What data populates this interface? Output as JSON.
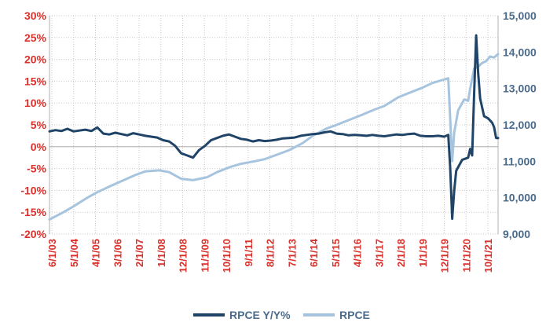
{
  "chart_data": {
    "type": "line",
    "title": "",
    "xlabel": "",
    "ylabel_left": "",
    "ylabel_right": "",
    "x_tick_labels": [
      "6/1/03",
      "5/1/04",
      "4/1/05",
      "3/1/06",
      "2/1/07",
      "1/1/08",
      "12/1/08",
      "11/1/09",
      "10/1/10",
      "9/1/11",
      "8/1/12",
      "7/1/13",
      "6/1/14",
      "5/1/15",
      "4/1/16",
      "3/1/17",
      "2/1/18",
      "1/1/19",
      "12/1/19",
      "11/1/20",
      "10/1/21"
    ],
    "x_start": "2003-06",
    "x_end": "2022-03",
    "y_left": {
      "min": -20,
      "max": 30,
      "step": 5,
      "format": "percent"
    },
    "y_right": {
      "min": 9000,
      "max": 15000,
      "step": 1000,
      "format": "thousands"
    },
    "grid": true,
    "legend_position": "bottom",
    "colors": {
      "rpce_yoy": "#1f4467",
      "rpce": "#a7c4df",
      "axis_left": "#d9312b",
      "axis_right": "#4a6b8c",
      "grid": "#c8c8c8"
    },
    "series": [
      {
        "name": "RPCE Y/Y%",
        "axis": "left",
        "color": "#1f4467",
        "points": [
          [
            "2003-06",
            3.5
          ],
          [
            "2003-09",
            3.8
          ],
          [
            "2003-12",
            3.6
          ],
          [
            "2004-03",
            4.1
          ],
          [
            "2004-06",
            3.5
          ],
          [
            "2004-09",
            3.7
          ],
          [
            "2004-12",
            3.9
          ],
          [
            "2005-03",
            3.6
          ],
          [
            "2005-06",
            4.4
          ],
          [
            "2005-09",
            3.0
          ],
          [
            "2005-12",
            2.8
          ],
          [
            "2006-03",
            3.2
          ],
          [
            "2006-06",
            2.9
          ],
          [
            "2006-09",
            2.6
          ],
          [
            "2006-12",
            3.1
          ],
          [
            "2007-03",
            2.8
          ],
          [
            "2007-06",
            2.5
          ],
          [
            "2007-09",
            2.3
          ],
          [
            "2007-12",
            2.1
          ],
          [
            "2008-03",
            1.5
          ],
          [
            "2008-06",
            1.2
          ],
          [
            "2008-09",
            0.2
          ],
          [
            "2008-12",
            -1.5
          ],
          [
            "2009-03",
            -2.0
          ],
          [
            "2009-06",
            -2.5
          ],
          [
            "2009-09",
            -0.8
          ],
          [
            "2009-12",
            0.2
          ],
          [
            "2010-03",
            1.5
          ],
          [
            "2010-06",
            2.0
          ],
          [
            "2010-09",
            2.5
          ],
          [
            "2010-12",
            2.8
          ],
          [
            "2011-03",
            2.3
          ],
          [
            "2011-06",
            1.8
          ],
          [
            "2011-09",
            1.6
          ],
          [
            "2011-12",
            1.2
          ],
          [
            "2012-03",
            1.5
          ],
          [
            "2012-06",
            1.3
          ],
          [
            "2012-09",
            1.4
          ],
          [
            "2012-12",
            1.6
          ],
          [
            "2013-03",
            1.9
          ],
          [
            "2013-06",
            2.0
          ],
          [
            "2013-09",
            2.1
          ],
          [
            "2013-12",
            2.5
          ],
          [
            "2014-03",
            2.7
          ],
          [
            "2014-06",
            2.9
          ],
          [
            "2014-09",
            3.0
          ],
          [
            "2014-12",
            3.3
          ],
          [
            "2015-03",
            3.5
          ],
          [
            "2015-06",
            3.0
          ],
          [
            "2015-09",
            2.9
          ],
          [
            "2015-12",
            2.6
          ],
          [
            "2016-03",
            2.7
          ],
          [
            "2016-06",
            2.6
          ],
          [
            "2016-09",
            2.5
          ],
          [
            "2016-12",
            2.7
          ],
          [
            "2017-03",
            2.5
          ],
          [
            "2017-06",
            2.4
          ],
          [
            "2017-09",
            2.6
          ],
          [
            "2017-12",
            2.8
          ],
          [
            "2018-03",
            2.7
          ],
          [
            "2018-06",
            2.9
          ],
          [
            "2018-09",
            3.0
          ],
          [
            "2018-12",
            2.5
          ],
          [
            "2019-03",
            2.4
          ],
          [
            "2019-06",
            2.4
          ],
          [
            "2019-09",
            2.5
          ],
          [
            "2019-12",
            2.3
          ],
          [
            "2020-02",
            2.7
          ],
          [
            "2020-03",
            -5.0
          ],
          [
            "2020-04",
            -16.5
          ],
          [
            "2020-05",
            -10.0
          ],
          [
            "2020-06",
            -5.5
          ],
          [
            "2020-09",
            -3.0
          ],
          [
            "2020-12",
            -2.5
          ],
          [
            "2021-01",
            -0.5
          ],
          [
            "2021-02",
            -2.0
          ],
          [
            "2021-03",
            12.0
          ],
          [
            "2021-04",
            25.5
          ],
          [
            "2021-05",
            17.0
          ],
          [
            "2021-06",
            11.0
          ],
          [
            "2021-08",
            7.0
          ],
          [
            "2021-10",
            6.5
          ],
          [
            "2021-12",
            5.5
          ],
          [
            "2022-01",
            4.5
          ],
          [
            "2022-02",
            2.0
          ],
          [
            "2022-03",
            2.0
          ]
        ]
      },
      {
        "name": "RPCE",
        "axis": "right",
        "color": "#a7c4df",
        "points": [
          [
            "2003-06",
            9400
          ],
          [
            "2004-01",
            9600
          ],
          [
            "2004-06",
            9760
          ],
          [
            "2005-01",
            10000
          ],
          [
            "2005-06",
            10150
          ],
          [
            "2006-01",
            10330
          ],
          [
            "2006-06",
            10450
          ],
          [
            "2007-01",
            10620
          ],
          [
            "2007-06",
            10720
          ],
          [
            "2008-01",
            10750
          ],
          [
            "2008-06",
            10700
          ],
          [
            "2008-12",
            10520
          ],
          [
            "2009-06",
            10480
          ],
          [
            "2010-01",
            10560
          ],
          [
            "2010-06",
            10700
          ],
          [
            "2011-01",
            10850
          ],
          [
            "2011-06",
            10930
          ],
          [
            "2012-01",
            11000
          ],
          [
            "2012-06",
            11060
          ],
          [
            "2013-01",
            11200
          ],
          [
            "2013-06",
            11300
          ],
          [
            "2014-01",
            11500
          ],
          [
            "2014-06",
            11700
          ],
          [
            "2015-01",
            11900
          ],
          [
            "2015-06",
            12000
          ],
          [
            "2016-01",
            12150
          ],
          [
            "2016-06",
            12260
          ],
          [
            "2017-01",
            12420
          ],
          [
            "2017-06",
            12520
          ],
          [
            "2018-01",
            12760
          ],
          [
            "2018-06",
            12870
          ],
          [
            "2019-01",
            13020
          ],
          [
            "2019-06",
            13150
          ],
          [
            "2020-02",
            13280
          ],
          [
            "2020-04",
            11000
          ],
          [
            "2020-05",
            11800
          ],
          [
            "2020-07",
            12400
          ],
          [
            "2020-10",
            12700
          ],
          [
            "2020-12",
            12660
          ],
          [
            "2021-01",
            13000
          ],
          [
            "2021-03",
            13550
          ],
          [
            "2021-05",
            13600
          ],
          [
            "2021-07",
            13700
          ],
          [
            "2021-09",
            13750
          ],
          [
            "2021-11",
            13880
          ],
          [
            "2022-01",
            13850
          ],
          [
            "2022-03",
            13950
          ]
        ]
      }
    ]
  }
}
